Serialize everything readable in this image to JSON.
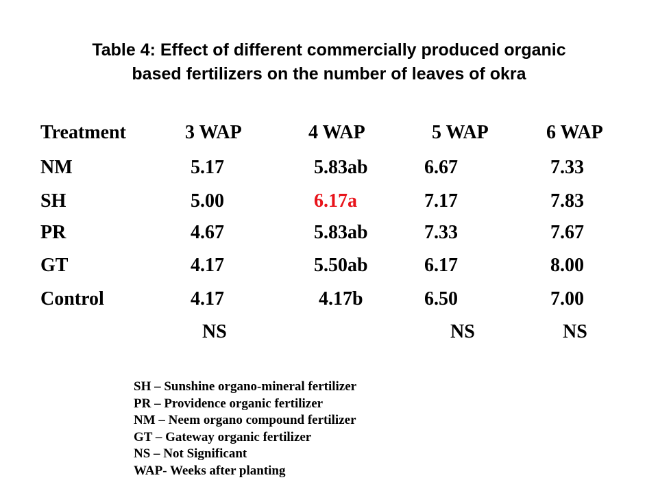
{
  "title": {
    "line1": "Table 4: Effect of different commercially produced organic",
    "line2": "based fertilizers on the number of leaves of okra"
  },
  "table": {
    "headers": [
      "Treatment",
      "3 WAP",
      "4 WAP",
      "5 WAP",
      "6 WAP"
    ],
    "rows": [
      [
        "NM",
        "5.17",
        "5.83ab",
        "6.67",
        "7.33"
      ],
      [
        "SH",
        "5.00",
        "6.17a",
        "7.17",
        "7.83"
      ],
      [
        "PR",
        "4.67",
        "5.83ab",
        "7.33",
        "7.67"
      ],
      [
        "GT",
        "4.17",
        "5.50ab",
        "6.17",
        "8.00"
      ],
      [
        "Control",
        "4.17",
        "4.17b",
        "6.50",
        "7.00"
      ]
    ],
    "significance": [
      "",
      "NS",
      "",
      "NS",
      "NS"
    ],
    "highlight_color": "#e8141b"
  },
  "legend": [
    "SH – Sunshine organo-mineral fertilizer",
    "PR – Providence organic fertilizer",
    "NM – Neem organo compound fertilizer",
    "GT – Gateway organic fertilizer",
    "NS – Not Significant",
    "WAP- Weeks after planting"
  ]
}
